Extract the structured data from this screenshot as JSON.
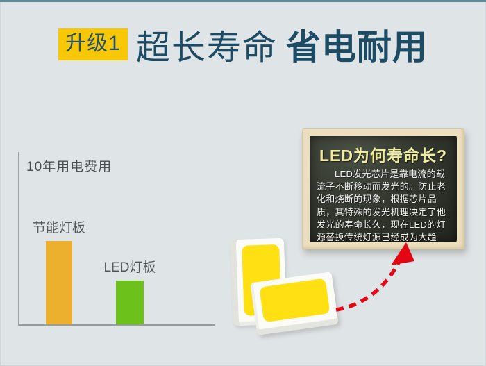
{
  "page": {
    "background": "#dfe4e7",
    "top_strip_color": "#5d8795"
  },
  "header": {
    "badge_label": "升级1",
    "badge_bg": "#f8c705",
    "badge_text_color": "#27506a",
    "title_light": "超长寿命",
    "title_bold": "省电耐用",
    "text_color": "#1d4b63"
  },
  "chart_data": {
    "type": "bar",
    "title": "10年用电费用",
    "categories": [
      "节能灯板",
      "LED灯板"
    ],
    "values": [
      48,
      25
    ],
    "values_estimated": true,
    "ylim": [
      0,
      100
    ],
    "xlabel": "",
    "ylabel": "",
    "grid": false,
    "legend": false,
    "colors": [
      "#edb02e",
      "#6cc21b"
    ]
  },
  "blackboard": {
    "title": "LED为何寿命长?",
    "body": "LED发光芯片是靠电流的载流子不断移动而发光的。防止老化和烧断的现象，根据芯片品质，其特殊的发光机理决定了他发光的寿命长久，现在LED的灯源替换传统灯源已经成为大趋势。",
    "title_color": "#efec9f",
    "body_color": "#f2f2ef"
  },
  "illustration": {
    "chip_face_color": "#ffe012",
    "arrow_color": "#e30613"
  }
}
